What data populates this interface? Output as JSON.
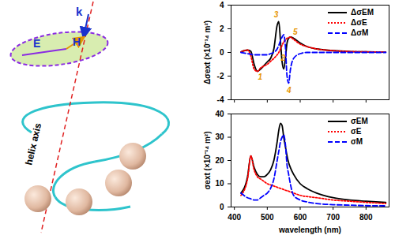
{
  "chart_data": [
    {
      "type": "line",
      "y_label": "Δσext (×10⁻¹⁴ m²)",
      "x": [
        420,
        440,
        450,
        460,
        470,
        480,
        490,
        500,
        510,
        520,
        530,
        535,
        540,
        545,
        550,
        555,
        560,
        565,
        570,
        580,
        600,
        620,
        650,
        700,
        750,
        800,
        860
      ],
      "series": [
        {
          "name": "ΔσEM",
          "color": "#000000",
          "line_style": "solid",
          "values": [
            0.05,
            0.2,
            0.1,
            -1.0,
            -1.6,
            -1.4,
            -1.1,
            -0.8,
            -0.5,
            0.3,
            2.3,
            2.6,
            1.0,
            -0.8,
            -1.4,
            -0.5,
            0.8,
            1.2,
            1.3,
            1.2,
            0.8,
            0.5,
            0.3,
            0.15,
            0.08,
            0.05,
            0.03
          ]
        },
        {
          "name": "ΔσE",
          "color": "#ff0000",
          "line_style": "dotted",
          "values": [
            0.05,
            0.2,
            -0.3,
            -1.4,
            -1.6,
            -1.3,
            -1.15,
            -1.0,
            -0.75,
            -0.5,
            -0.2,
            0,
            0.3,
            0.6,
            0.9,
            1.05,
            1.2,
            1.25,
            1.3,
            1.1,
            0.7,
            0.5,
            0.3,
            0.15,
            0.08,
            0.05,
            0.03
          ]
        },
        {
          "name": "ΔσM",
          "color": "#0000ff",
          "line_style": "dashed",
          "values": [
            0,
            -0.1,
            -0.15,
            -0.2,
            -0.2,
            -0.2,
            -0.2,
            -0.2,
            -0.1,
            0,
            0.3,
            0.6,
            1.0,
            1.3,
            1.5,
            0.5,
            -2.0,
            -2.6,
            -1.5,
            -0.5,
            -0.1,
            0,
            0,
            0,
            0,
            0,
            0
          ]
        }
      ],
      "xlim": [
        390,
        870
      ],
      "xticks": [
        400,
        500,
        600,
        700,
        800
      ],
      "ylim": [
        -4,
        4
      ],
      "yticks": [
        -4,
        -2,
        0,
        2,
        4
      ],
      "tick_labels": "y",
      "legend": "top-right",
      "annotations": [
        {
          "x": 478,
          "y": -2.1,
          "text": "1"
        },
        {
          "x": 548,
          "y": -0.5,
          "text": "2"
        },
        {
          "x": 527,
          "y": 3.2,
          "text": "3"
        },
        {
          "x": 566,
          "y": -3.2,
          "text": "4"
        },
        {
          "x": 585,
          "y": 1.7,
          "text": "5"
        }
      ]
    },
    {
      "type": "line",
      "x_label": "wavelength (nm)",
      "y_label": "σext (×10⁻¹⁴ m²)",
      "x": [
        420,
        440,
        450,
        460,
        470,
        480,
        490,
        500,
        510,
        520,
        530,
        535,
        540,
        545,
        550,
        555,
        560,
        565,
        570,
        580,
        600,
        620,
        650,
        700,
        750,
        800,
        860
      ],
      "series": [
        {
          "name": "σEM",
          "color": "#000000",
          "line_style": "solid",
          "values": [
            6,
            13,
            22,
            17,
            14,
            13,
            13,
            14,
            16,
            20,
            28,
            33,
            36,
            35,
            30,
            26,
            22,
            19,
            17,
            14,
            10,
            8,
            6,
            4,
            3,
            2.5,
            2
          ]
        },
        {
          "name": "σE",
          "color": "#ff0000",
          "line_style": "dotted",
          "values": [
            5,
            12,
            22,
            16,
            13,
            12,
            11,
            10,
            9.5,
            9,
            8.5,
            8.2,
            8,
            7.8,
            7.5,
            7.2,
            7,
            6.8,
            6.5,
            6,
            5,
            4.5,
            4,
            3,
            2.5,
            2,
            1.5
          ]
        },
        {
          "name": "σM",
          "color": "#0000ff",
          "line_style": "dashed",
          "values": [
            6,
            4,
            3.5,
            3,
            3,
            4,
            5,
            6,
            8,
            12,
            20,
            24,
            28,
            30,
            31,
            27,
            18,
            14,
            10,
            5,
            3,
            2.2,
            1.5,
            1,
            0.8,
            0.6,
            0.5
          ]
        }
      ],
      "xlim": [
        390,
        870
      ],
      "xticks": [
        400,
        500,
        600,
        700,
        800
      ],
      "ylim": [
        0,
        40
      ],
      "yticks": [
        0,
        10,
        20,
        30,
        40
      ],
      "legend": "top-right"
    }
  ],
  "diagram": {
    "texts": [
      "k",
      "E",
      "H",
      "helix axis"
    ]
  }
}
